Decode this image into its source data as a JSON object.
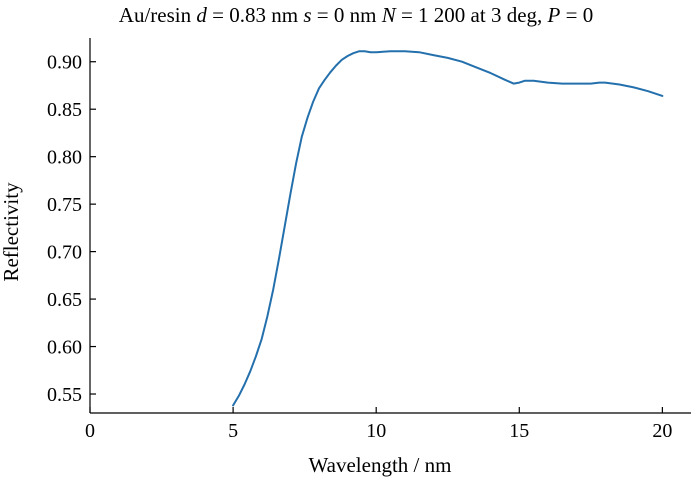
{
  "colors": {
    "series": "#2470ad",
    "axis": "#000000"
  },
  "chart_data": {
    "type": "line",
    "title_parts": [
      {
        "text": "Au/resin ",
        "italic": false
      },
      {
        "text": "d",
        "italic": true
      },
      {
        "text": " = 0.83 nm ",
        "italic": false
      },
      {
        "text": "s",
        "italic": true
      },
      {
        "text": " = 0 nm ",
        "italic": false
      },
      {
        "text": "N",
        "italic": true
      },
      {
        "text": " = 1 200 at 3 deg, ",
        "italic": false
      },
      {
        "text": "P",
        "italic": true
      },
      {
        "text": " = 0",
        "italic": false
      }
    ],
    "xlabel": "Wavelength / nm",
    "ylabel": "Reflectivity",
    "xlim": [
      0,
      21
    ],
    "ylim": [
      0.53,
      0.925
    ],
    "xticks": [
      0,
      5,
      10,
      15,
      20
    ],
    "xtick_labels": [
      "0",
      "5",
      "10",
      "15",
      "20"
    ],
    "yticks": [
      0.55,
      0.6,
      0.65,
      0.7,
      0.75,
      0.8,
      0.85,
      0.9
    ],
    "ytick_labels": [
      "0.55",
      "0.60",
      "0.65",
      "0.70",
      "0.75",
      "0.80",
      "0.85",
      "0.90"
    ],
    "grid": false,
    "series": [
      {
        "x": [
          5.0,
          5.2,
          5.4,
          5.6,
          5.8,
          6.0,
          6.2,
          6.4,
          6.6,
          6.8,
          7.0,
          7.2,
          7.4,
          7.6,
          7.8,
          8.0,
          8.2,
          8.4,
          8.6,
          8.8,
          9.0,
          9.2,
          9.4,
          9.6,
          9.8,
          10.0,
          10.5,
          11.0,
          11.5,
          12.0,
          12.5,
          13.0,
          13.5,
          14.0,
          14.5,
          14.8,
          15.0,
          15.2,
          15.5,
          16.0,
          16.5,
          17.0,
          17.5,
          17.8,
          18.0,
          18.5,
          19.0,
          19.5,
          20.0
        ],
        "y": [
          0.538,
          0.548,
          0.56,
          0.574,
          0.59,
          0.608,
          0.632,
          0.66,
          0.692,
          0.726,
          0.76,
          0.793,
          0.821,
          0.841,
          0.858,
          0.872,
          0.881,
          0.889,
          0.896,
          0.902,
          0.906,
          0.909,
          0.911,
          0.911,
          0.91,
          0.91,
          0.911,
          0.911,
          0.91,
          0.907,
          0.904,
          0.9,
          0.894,
          0.888,
          0.881,
          0.877,
          0.878,
          0.88,
          0.88,
          0.878,
          0.877,
          0.877,
          0.877,
          0.878,
          0.878,
          0.876,
          0.873,
          0.869,
          0.864
        ]
      }
    ]
  }
}
